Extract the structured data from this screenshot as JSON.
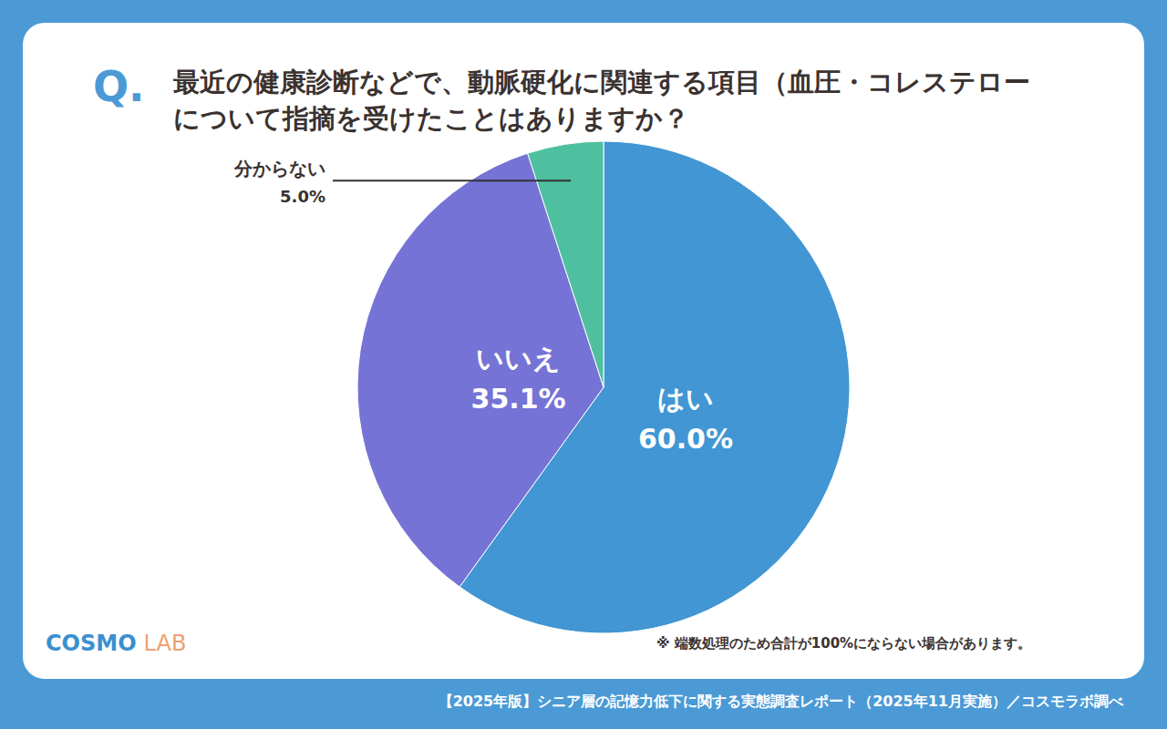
{
  "chart_data": {
    "type": "pie",
    "title_prefix": "Q.",
    "title_lines": [
      "最近の健康診断などで、動脈硬化に関連する項目（血圧・コレステロー",
      "について指摘を受けたことはありますか？"
    ],
    "categories": [
      "はい",
      "いいえ",
      "分からない"
    ],
    "values": [
      60.0,
      35.1,
      5.0
    ],
    "value_labels": [
      "60.0%",
      "35.1%",
      "5.0%"
    ],
    "colors": [
      "#4196d3",
      "#7573d5",
      "#4ec09f"
    ],
    "data_labels": true,
    "note": "※ 端数処理のため合計が100%にならない場合があります。",
    "source": "【2025年版】シニア層の記憶力低下に関する実態調査レポート（2025年11月実施）／コスモラボ調べ",
    "logo": [
      "COSMO",
      "LAB"
    ]
  }
}
